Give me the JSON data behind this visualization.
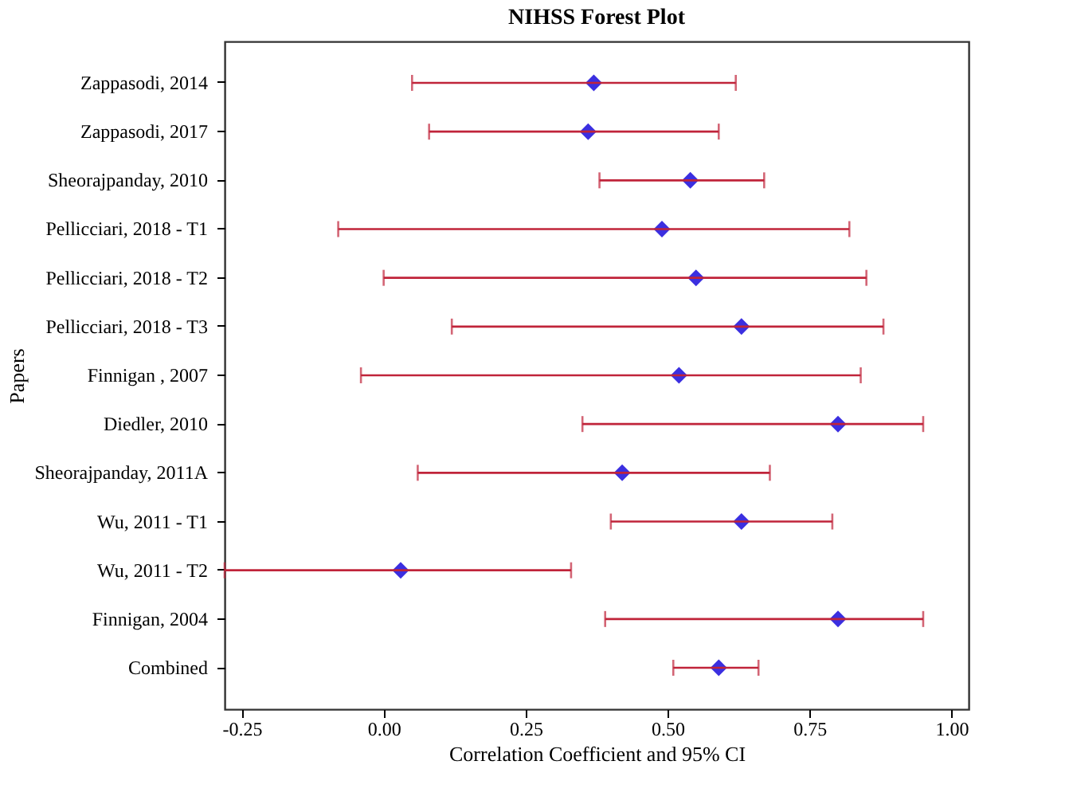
{
  "chart_data": {
    "type": "scatter",
    "orientation": "horizontal",
    "title": "NIHSS Forest Plot",
    "xlabel": "Correlation Coefficient and 95%  CI",
    "ylabel": "Papers",
    "categories": [
      "Zappasodi, 2014",
      "Zappasodi, 2017",
      "Sheorajpanday, 2010",
      "Pellicciari, 2018 - T1",
      "Pellicciari, 2018 - T2",
      "Pellicciari, 2018 - T3",
      "Finnigan , 2007",
      "Diedler, 2010",
      "Sheorajpanday, 2011A",
      "Wu, 2011 - T1",
      "Wu, 2011 - T2",
      "Finnigan, 2004",
      "Combined"
    ],
    "series": [
      {
        "color": "#3b2fe0",
        "values": [
          0.37,
          0.36,
          0.54,
          0.49,
          0.55,
          0.63,
          0.52,
          0.8,
          0.42,
          0.63,
          0.03,
          0.8,
          0.59
        ],
        "errors": [
          [
            0.05,
            0.62
          ],
          [
            0.08,
            0.59
          ],
          [
            0.38,
            0.67
          ],
          [
            -0.08,
            0.82
          ],
          [
            0.0,
            0.85
          ],
          [
            0.12,
            0.88
          ],
          [
            -0.04,
            0.84
          ],
          [
            0.35,
            0.95
          ],
          [
            0.06,
            0.68
          ],
          [
            0.4,
            0.79
          ],
          [
            -0.28,
            0.33
          ],
          [
            0.39,
            0.95
          ],
          [
            0.51,
            0.66
          ]
        ]
      }
    ],
    "xlim": [
      -0.28,
      1.03
    ],
    "xticks": [
      {
        "value": -0.25,
        "label": "-0.25"
      },
      {
        "value": 0,
        "label": "0.00"
      },
      {
        "value": 0.25,
        "label": "0.25"
      },
      {
        "value": 0.5,
        "label": "0.50"
      },
      {
        "value": 0.75,
        "label": "0.75"
      },
      {
        "value": 1,
        "label": "1.00"
      }
    ],
    "marker": "diamond",
    "grid": false
  }
}
